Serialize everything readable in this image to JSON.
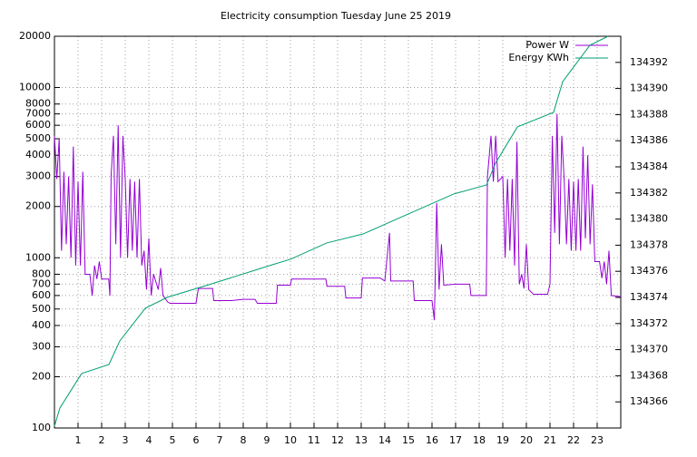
{
  "chart_data": {
    "type": "line",
    "title": "Electricity consumption Tuesday June 25 2019",
    "xlim": [
      0,
      24
    ],
    "xticks": [
      1,
      2,
      3,
      4,
      5,
      6,
      7,
      8,
      9,
      10,
      11,
      12,
      13,
      14,
      15,
      16,
      17,
      18,
      19,
      20,
      21,
      22,
      23
    ],
    "ylim": [
      100,
      20000
    ],
    "log_y": true,
    "yticks": [
      100,
      200,
      300,
      400,
      500,
      600,
      700,
      800,
      1000,
      2000,
      3000,
      4000,
      5000,
      6000,
      7000,
      8000,
      10000,
      20000
    ],
    "y2lim": [
      134364,
      134394
    ],
    "y2ticks": [
      134366,
      134368,
      134370,
      134372,
      134374,
      134376,
      134378,
      134380,
      134382,
      134384,
      134386,
      134388,
      134390,
      134392
    ],
    "grid": true,
    "legend": "top-right",
    "series": [
      {
        "name": "Power W",
        "color": "#9400d3",
        "x": [
          0,
          0.1,
          0.2,
          0.3,
          0.4,
          0.5,
          0.6,
          0.7,
          0.8,
          0.9,
          1.0,
          1.1,
          1.2,
          1.3,
          1.5,
          1.6,
          1.7,
          1.8,
          1.9,
          2.0,
          2.3,
          2.35,
          2.4,
          2.5,
          2.6,
          2.7,
          2.8,
          2.9,
          3.0,
          3.1,
          3.2,
          3.3,
          3.4,
          3.5,
          3.6,
          3.7,
          3.8,
          3.9,
          4.0,
          4.1,
          4.2,
          4.4,
          4.5,
          4.6,
          4.8,
          4.9,
          5.0,
          6.0,
          6.1,
          6.7,
          6.75,
          7.5,
          8.0,
          8.5,
          8.6,
          9.4,
          9.45,
          10.0,
          10.05,
          11.5,
          11.55,
          12.3,
          12.35,
          13.0,
          13.05,
          13.8,
          14.0,
          14.2,
          14.25,
          15.2,
          15.25,
          16.0,
          16.1,
          16.2,
          16.3,
          16.4,
          16.5,
          17.0,
          17.6,
          17.65,
          18.3,
          18.35,
          18.5,
          18.6,
          18.7,
          18.8,
          19.0,
          19.1,
          19.2,
          19.3,
          19.4,
          19.5,
          19.6,
          19.7,
          19.8,
          19.9,
          20.0,
          20.1,
          20.3,
          20.9,
          21.0,
          21.1,
          21.2,
          21.3,
          21.4,
          21.5,
          21.6,
          21.7,
          21.8,
          21.9,
          22.0,
          22.1,
          22.2,
          22.3,
          22.4,
          22.5,
          22.6,
          22.7,
          22.8,
          22.9,
          23.1,
          23.2,
          23.3,
          23.4,
          23.5,
          23.6,
          24.0
        ],
        "values": [
          5200,
          2900,
          5000,
          1100,
          3200,
          1200,
          3000,
          1000,
          4500,
          900,
          2800,
          900,
          3200,
          800,
          800,
          600,
          900,
          750,
          950,
          750,
          750,
          600,
          3000,
          5200,
          1200,
          6000,
          1000,
          5200,
          2900,
          1000,
          2900,
          1100,
          2800,
          1000,
          2900,
          900,
          1100,
          650,
          1300,
          600,
          800,
          650,
          870,
          600,
          550,
          540,
          540,
          540,
          660,
          660,
          560,
          560,
          570,
          570,
          540,
          540,
          690,
          690,
          750,
          750,
          680,
          680,
          580,
          580,
          760,
          760,
          730,
          1400,
          730,
          730,
          560,
          560,
          430,
          2100,
          650,
          1200,
          690,
          700,
          700,
          600,
          600,
          3000,
          5200,
          2800,
          5200,
          2800,
          3000,
          1000,
          2900,
          1100,
          2900,
          900,
          4800,
          700,
          800,
          660,
          1200,
          650,
          610,
          610,
          700,
          5200,
          1400,
          7000,
          1200,
          5200,
          2900,
          1200,
          2900,
          1100,
          2800,
          1100,
          2900,
          1100,
          4500,
          1300,
          4000,
          1200,
          2700,
          950,
          950,
          760,
          950,
          700,
          1100,
          600,
          590
        ]
      },
      {
        "name": "Energy KWh",
        "color": "#009e73",
        "axis": "y2",
        "x": [
          0,
          0.23,
          1.15,
          2.31,
          2.77,
          3.85,
          4.77,
          6.54,
          9.23,
          10.0,
          11.54,
          13.08,
          15.0,
          16.92,
          18.31,
          18.69,
          19.62,
          21.15,
          21.54,
          22.69,
          23.46
        ],
        "values": [
          134364.14,
          134365.53,
          134368.17,
          134368.86,
          134370.67,
          134373.17,
          134374.0,
          134374.97,
          134376.5,
          134376.92,
          134378.17,
          134378.86,
          134380.39,
          134381.92,
          134382.61,
          134384.28,
          134387.06,
          134388.17,
          134390.53,
          134393.31,
          134394.0
        ]
      }
    ]
  }
}
